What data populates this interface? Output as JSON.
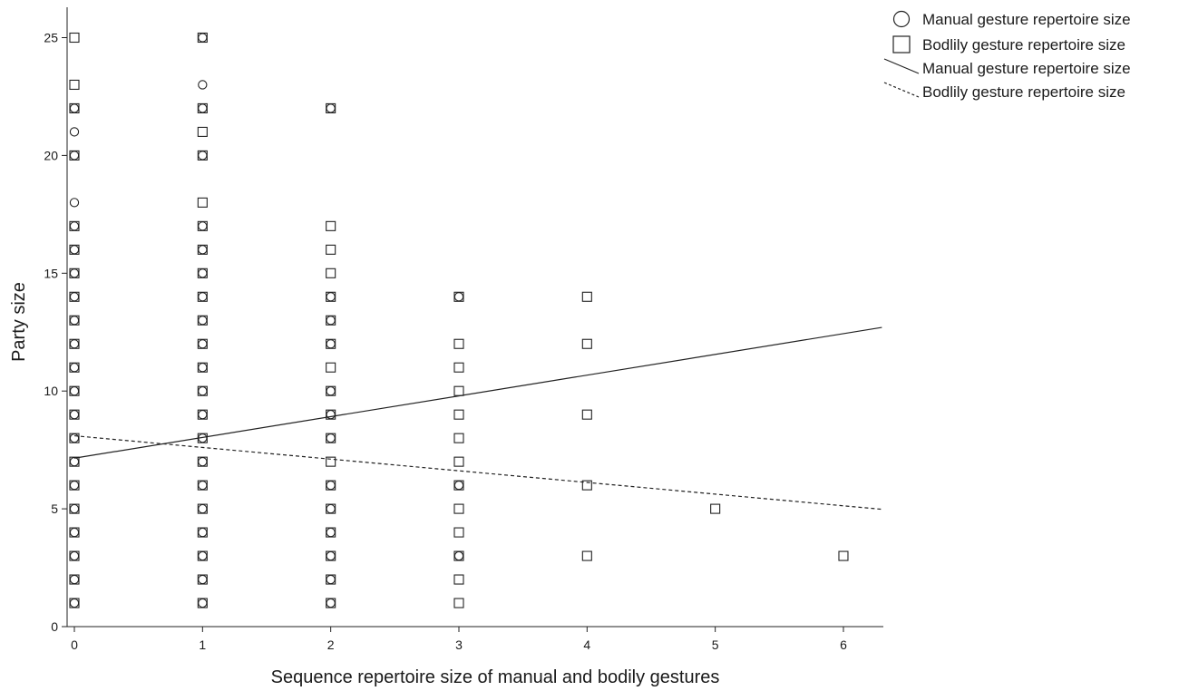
{
  "chart_data": {
    "type": "scatter",
    "title": "",
    "xlabel": "Sequence repertoire size of manual and bodily gestures",
    "ylabel": "Party size",
    "xlim": [
      -0.12,
      6.3
    ],
    "ylim": [
      0,
      26.3
    ],
    "x_ticks": [
      "0",
      "1",
      "2",
      "3",
      "4",
      "5",
      "6"
    ],
    "y_ticks": [
      "0",
      "5",
      "10",
      "15",
      "20",
      "25"
    ],
    "grid": false,
    "legend_position": "top-right",
    "legend": [
      {
        "label": "Manual gesture repertoire size",
        "marker": "circle"
      },
      {
        "label": "Bodlily gesture repertoire size",
        "marker": "square"
      },
      {
        "label": "Manual gesture repertoire size",
        "marker": "solid-line"
      },
      {
        "label": "Bodlily gesture repertoire size",
        "marker": "dashed-line"
      }
    ],
    "series": [
      {
        "name": "Manual gesture repertoire size",
        "marker": "circle",
        "points": [
          [
            0,
            1
          ],
          [
            0,
            2
          ],
          [
            0,
            3
          ],
          [
            0,
            4
          ],
          [
            0,
            5
          ],
          [
            0,
            6
          ],
          [
            0,
            7
          ],
          [
            0,
            8
          ],
          [
            0,
            9
          ],
          [
            0,
            10
          ],
          [
            0,
            11
          ],
          [
            0,
            12
          ],
          [
            0,
            13
          ],
          [
            0,
            14
          ],
          [
            0,
            15
          ],
          [
            0,
            16
          ],
          [
            0,
            17
          ],
          [
            0,
            18
          ],
          [
            0,
            20
          ],
          [
            0,
            21
          ],
          [
            0,
            22
          ],
          [
            1,
            1
          ],
          [
            1,
            2
          ],
          [
            1,
            3
          ],
          [
            1,
            4
          ],
          [
            1,
            5
          ],
          [
            1,
            6
          ],
          [
            1,
            7
          ],
          [
            1,
            8
          ],
          [
            1,
            9
          ],
          [
            1,
            10
          ],
          [
            1,
            11
          ],
          [
            1,
            12
          ],
          [
            1,
            13
          ],
          [
            1,
            14
          ],
          [
            1,
            15
          ],
          [
            1,
            16
          ],
          [
            1,
            17
          ],
          [
            1,
            20
          ],
          [
            1,
            22
          ],
          [
            1,
            23
          ],
          [
            1,
            25
          ],
          [
            2,
            1
          ],
          [
            2,
            2
          ],
          [
            2,
            3
          ],
          [
            2,
            4
          ],
          [
            2,
            5
          ],
          [
            2,
            6
          ],
          [
            2,
            8
          ],
          [
            2,
            9
          ],
          [
            2,
            10
          ],
          [
            2,
            12
          ],
          [
            2,
            13
          ],
          [
            2,
            14
          ],
          [
            2,
            22
          ],
          [
            3,
            3
          ],
          [
            3,
            6
          ],
          [
            3,
            14
          ]
        ]
      },
      {
        "name": "Bodlily gesture repertoire size",
        "marker": "square",
        "points": [
          [
            0,
            1
          ],
          [
            0,
            2
          ],
          [
            0,
            3
          ],
          [
            0,
            4
          ],
          [
            0,
            5
          ],
          [
            0,
            6
          ],
          [
            0,
            7
          ],
          [
            0,
            8
          ],
          [
            0,
            9
          ],
          [
            0,
            10
          ],
          [
            0,
            11
          ],
          [
            0,
            12
          ],
          [
            0,
            13
          ],
          [
            0,
            14
          ],
          [
            0,
            15
          ],
          [
            0,
            16
          ],
          [
            0,
            17
          ],
          [
            0,
            20
          ],
          [
            0,
            22
          ],
          [
            0,
            23
          ],
          [
            0,
            25
          ],
          [
            1,
            1
          ],
          [
            1,
            2
          ],
          [
            1,
            3
          ],
          [
            1,
            4
          ],
          [
            1,
            5
          ],
          [
            1,
            6
          ],
          [
            1,
            7
          ],
          [
            1,
            8
          ],
          [
            1,
            9
          ],
          [
            1,
            10
          ],
          [
            1,
            11
          ],
          [
            1,
            12
          ],
          [
            1,
            13
          ],
          [
            1,
            14
          ],
          [
            1,
            15
          ],
          [
            1,
            16
          ],
          [
            1,
            17
          ],
          [
            1,
            18
          ],
          [
            1,
            20
          ],
          [
            1,
            21
          ],
          [
            1,
            22
          ],
          [
            1,
            25
          ],
          [
            2,
            1
          ],
          [
            2,
            2
          ],
          [
            2,
            3
          ],
          [
            2,
            4
          ],
          [
            2,
            5
          ],
          [
            2,
            6
          ],
          [
            2,
            7
          ],
          [
            2,
            8
          ],
          [
            2,
            9
          ],
          [
            2,
            10
          ],
          [
            2,
            11
          ],
          [
            2,
            12
          ],
          [
            2,
            13
          ],
          [
            2,
            14
          ],
          [
            2,
            15
          ],
          [
            2,
            16
          ],
          [
            2,
            17
          ],
          [
            2,
            22
          ],
          [
            3,
            1
          ],
          [
            3,
            2
          ],
          [
            3,
            3
          ],
          [
            3,
            4
          ],
          [
            3,
            5
          ],
          [
            3,
            6
          ],
          [
            3,
            7
          ],
          [
            3,
            8
          ],
          [
            3,
            9
          ],
          [
            3,
            10
          ],
          [
            3,
            11
          ],
          [
            3,
            12
          ],
          [
            3,
            14
          ],
          [
            4,
            3
          ],
          [
            4,
            6
          ],
          [
            4,
            9
          ],
          [
            4,
            12
          ],
          [
            4,
            14
          ],
          [
            5,
            5
          ],
          [
            6,
            3
          ]
        ]
      }
    ],
    "fit_lines": [
      {
        "name": "Manual gesture repertoire size",
        "style": "solid",
        "x": [
          0,
          6.3
        ],
        "y": [
          7.15,
          12.7
        ]
      },
      {
        "name": "Bodlily gesture repertoire size",
        "style": "dashed",
        "x": [
          0,
          6.3
        ],
        "y": [
          8.1,
          4.98
        ]
      }
    ]
  }
}
